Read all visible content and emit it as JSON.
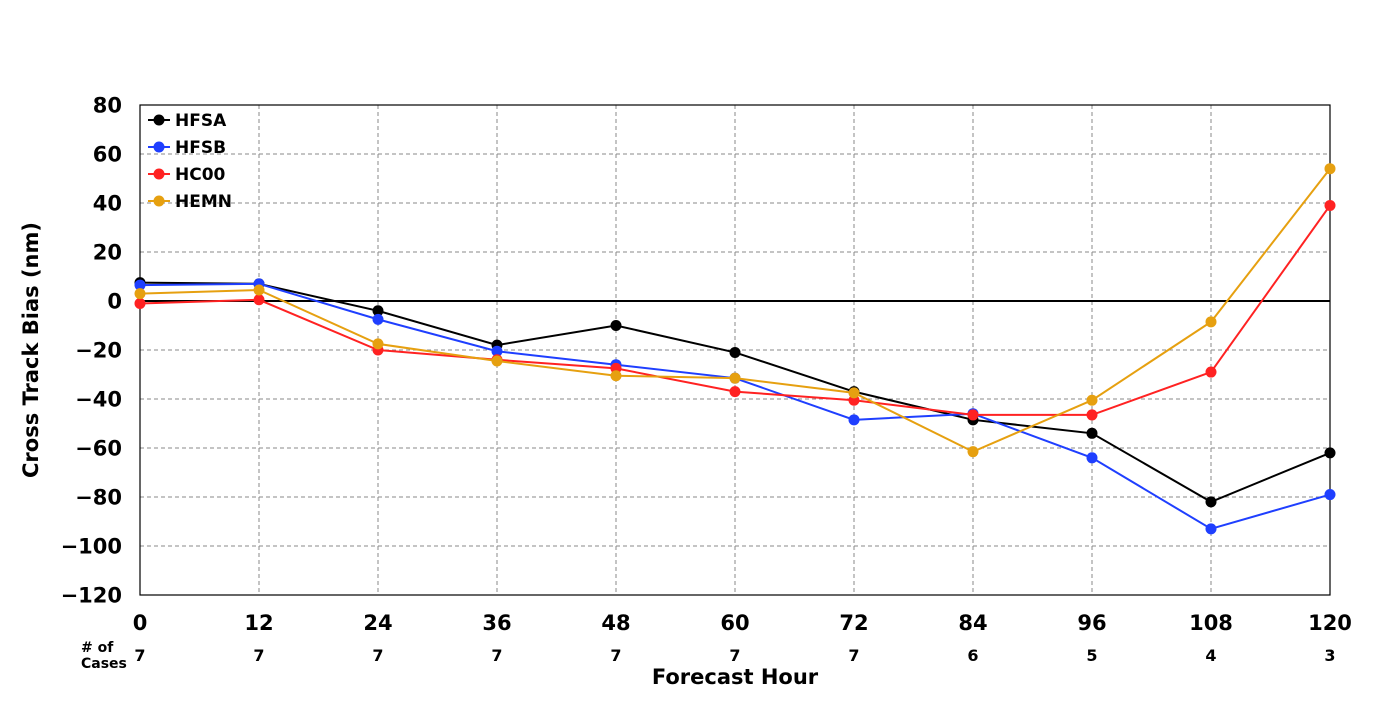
{
  "chart_data": {
    "type": "line",
    "title": "",
    "xlabel": "Forecast Hour",
    "ylabel": "Cross Track Bias (nm)",
    "x": [
      0,
      12,
      24,
      36,
      48,
      60,
      72,
      84,
      96,
      108,
      120
    ],
    "xlim": [
      0,
      120
    ],
    "ylim": [
      -120,
      80
    ],
    "xticks": [
      0,
      12,
      24,
      36,
      48,
      60,
      72,
      84,
      96,
      108,
      120
    ],
    "yticks": [
      80,
      60,
      40,
      20,
      0,
      -20,
      -40,
      -60,
      -80,
      -100,
      -120
    ],
    "ytick_labels": [
      "80",
      "60",
      "40",
      "20",
      "0",
      "−20",
      "−40",
      "−60",
      "−80",
      "−100",
      "−120"
    ],
    "grid": true,
    "zero_line": true,
    "legend_position": "top-left",
    "series": [
      {
        "name": "HFSA",
        "color": "#000000",
        "values": [
          7.5,
          7,
          -4,
          -18,
          -10,
          -21,
          -37,
          -48.5,
          -54,
          -82,
          -62
        ]
      },
      {
        "name": "HFSB",
        "color": "#1f3fff",
        "values": [
          6.5,
          7,
          -7.5,
          -20.5,
          -26,
          -31.5,
          -48.5,
          -46,
          -64,
          -93,
          -79
        ]
      },
      {
        "name": "HC00",
        "color": "#ff2222",
        "values": [
          -1,
          0.5,
          -20,
          -24,
          -27.5,
          -37,
          -40.5,
          -46.5,
          -46.5,
          -29,
          39
        ]
      },
      {
        "name": "HEMN",
        "color": "#e6a010",
        "values": [
          3,
          4.5,
          -17.5,
          -24.5,
          -30.5,
          -31.5,
          -37.5,
          -61.5,
          -40.5,
          -8.5,
          54
        ]
      }
    ],
    "cases": {
      "label_line1": "# of",
      "label_line2": "Cases",
      "counts": [
        "7",
        "7",
        "7",
        "7",
        "7",
        "7",
        "7",
        "6",
        "5",
        "4",
        "3"
      ]
    }
  }
}
